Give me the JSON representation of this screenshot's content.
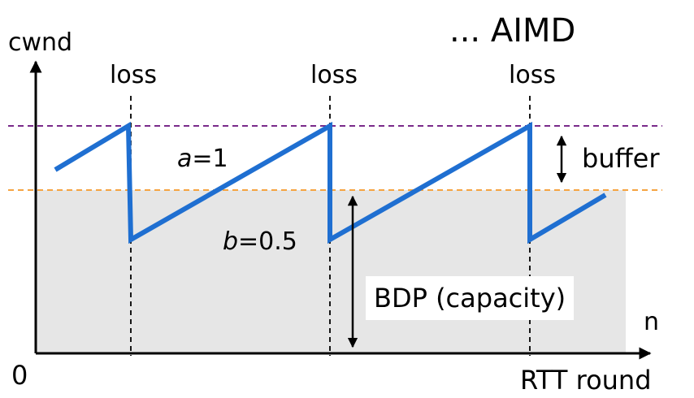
{
  "title": "... AIMD",
  "axes": {
    "y_label": "cwnd",
    "x_label": "RTT round",
    "origin_label": "0",
    "n_label": "n"
  },
  "events": [
    "loss",
    "loss",
    "loss"
  ],
  "params": {
    "a_symbol": "a",
    "a_value": "=1",
    "b_symbol": "b",
    "b_value": "=0.5"
  },
  "annotations": {
    "buffer": "buffer",
    "bdp": "BDP (capacity)"
  },
  "colors": {
    "sawtooth": "#1f6fd1",
    "buffer_line": "#7a2a8a",
    "bdp_line": "#f5a442",
    "bdp_fill": "#e6e6e6",
    "axis": "#000000"
  }
}
